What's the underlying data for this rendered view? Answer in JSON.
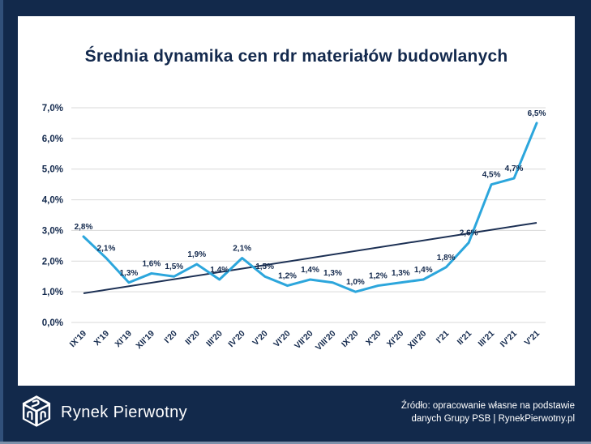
{
  "page": {
    "background": "#12294b",
    "edge_left_color": "#31507a",
    "edge_bottom_color": "#7c90aa",
    "card_background": "#ffffff"
  },
  "header": {
    "title": "Średnia dynamika cen rdr materiałów budowlanych"
  },
  "chart_data": {
    "type": "line",
    "title": "Średnia dynamika cen rdr materiałów budowlanych",
    "categories": [
      "IX'19",
      "X'19",
      "XI'19",
      "XII'19",
      "I'20",
      "II'20",
      "III'20",
      "IV'20",
      "V'20",
      "VI'20",
      "VII'20",
      "VIII'20",
      "IX'20",
      "X'20",
      "XI'20",
      "XII'20",
      "I'21",
      "II'21",
      "III'21",
      "IV'21",
      "V'21"
    ],
    "series": [
      {
        "name": "dynamika cen rdr",
        "color": "#2ca6dc",
        "values": [
          2.8,
          2.1,
          1.3,
          1.6,
          1.5,
          1.9,
          1.4,
          2.1,
          1.5,
          1.2,
          1.4,
          1.3,
          1.0,
          1.2,
          1.3,
          1.4,
          1.8,
          2.6,
          4.5,
          4.7,
          6.5
        ]
      }
    ],
    "value_labels": [
      "2,8%",
      "2,1%",
      "1,3%",
      "1,6%",
      "1,5%",
      "1,9%",
      "1,4%",
      "2,1%",
      "1,5%",
      "1,2%",
      "1,4%",
      "1,3%",
      "1,0%",
      "1,2%",
      "1,3%",
      "1,4%",
      "1,8%",
      "2,6%",
      "4,5%",
      "4,7%",
      "6,5%"
    ],
    "y_ticks": [
      "7,0%",
      "6,0%",
      "5,0%",
      "4,0%",
      "3,0%",
      "2,0%",
      "1,0%",
      "0,0%"
    ],
    "ylim": [
      0,
      7
    ],
    "grid": true,
    "legend": false,
    "trendline": {
      "color": "#1c3054",
      "start_value": 0.95,
      "end_value": 3.25
    },
    "label_color": "#13294d",
    "grid_color": "#d9d9d9",
    "xlabel": "",
    "ylabel": ""
  },
  "footer": {
    "brand_name": "Rynek Pierwotny",
    "source_line1": "Źródło: opracowanie własne na podstawie",
    "source_line2": "danych Grupy PSB | RynekPierwotny.pl"
  }
}
